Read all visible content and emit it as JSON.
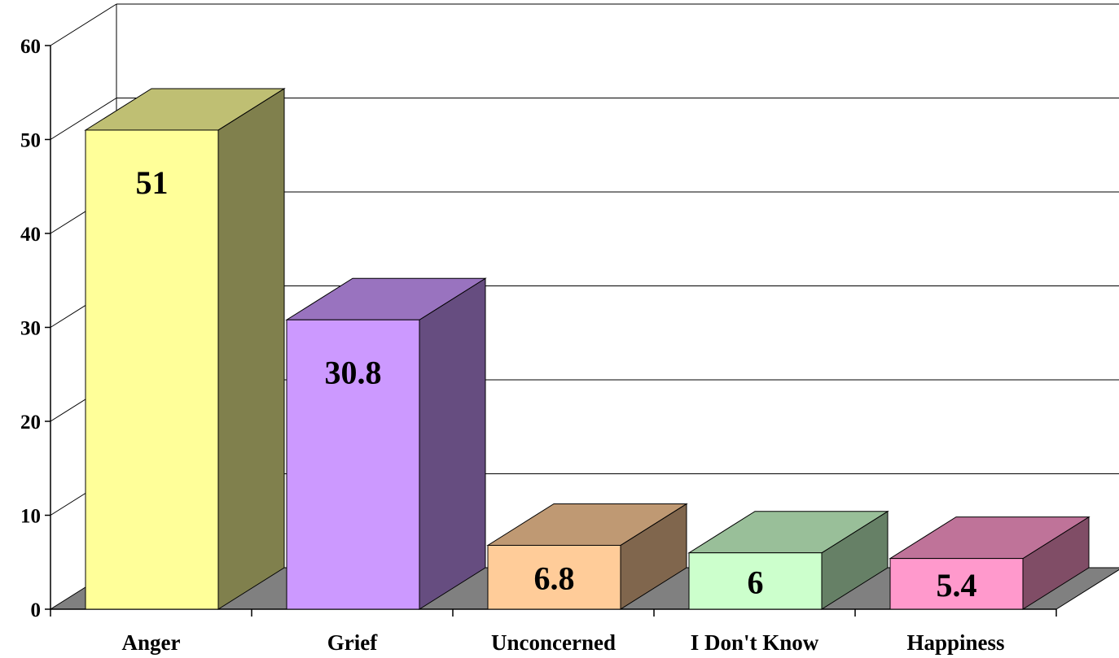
{
  "chart_data": {
    "type": "bar",
    "title": "",
    "xlabel": "",
    "ylabel": "",
    "categories": [
      "Anger",
      "Grief",
      "Unconcerned",
      "I Don't Know",
      "Happiness"
    ],
    "values": [
      51,
      30.8,
      6.8,
      6,
      5.4
    ],
    "value_labels": [
      "51",
      "30.8",
      "6.8",
      "6",
      "5.4"
    ],
    "ylim": [
      0,
      60
    ],
    "yticks": [
      "0",
      "10",
      "20",
      "30",
      "40",
      "50",
      "60"
    ],
    "grid": true,
    "three_d": true,
    "legend": "none",
    "colors": {
      "front": [
        "#FFFF99",
        "#CC99FF",
        "#FFCC99",
        "#CCFFCC",
        "#FF99CC"
      ],
      "top": [
        "#BFBF73",
        "#9973BF",
        "#BF9973",
        "#99BF99",
        "#BF7399"
      ],
      "side": [
        "#80804D",
        "#664D80",
        "#80664D",
        "#668066",
        "#804D66"
      ],
      "floor": "#808080",
      "grid": "#000000"
    }
  }
}
